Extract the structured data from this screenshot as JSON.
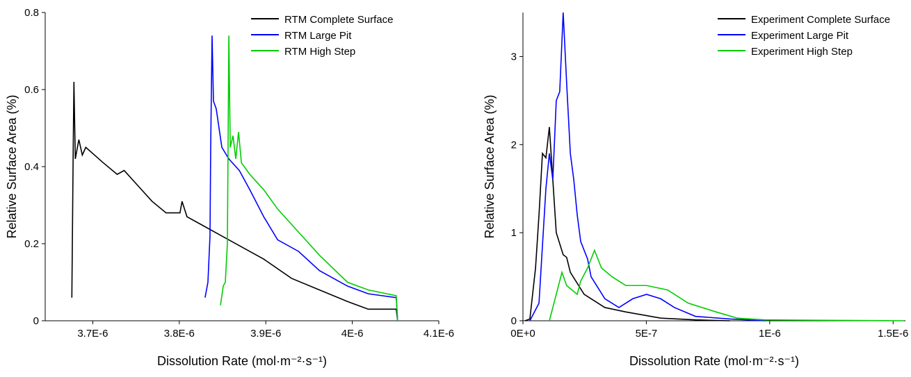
{
  "chart_data": [
    {
      "type": "line",
      "x_label": "Dissolution Rate (mol·m⁻²·s⁻¹)",
      "y_label": "Relative Surface Area (%)",
      "xlim": [
        3.645e-06,
        4.1e-06
      ],
      "ylim": [
        0,
        0.8
      ],
      "xticks": [
        {
          "value": 3.7e-06,
          "label": "3.7E-6"
        },
        {
          "value": 3.8e-06,
          "label": "3.8E-6"
        },
        {
          "value": 3.9e-06,
          "label": "3.9E-6"
        },
        {
          "value": 4e-06,
          "label": "4E-6"
        },
        {
          "value": 4.1e-06,
          "label": "4.1E-6"
        }
      ],
      "yticks": [
        0,
        0.2,
        0.4,
        0.6,
        0.8
      ],
      "legend": "upper right",
      "series": [
        {
          "name": "RTM Complete Surface",
          "color": "#000000",
          "x": [
            3.6758e-06,
            3.6774e-06,
            3.6782e-06,
            3.6798e-06,
            3.6839e-06,
            3.6879e-06,
            3.6919e-06,
            3.7121e-06,
            3.7282e-06,
            3.7363e-06,
            3.7524e-06,
            3.7685e-06,
            3.7847e-06,
            3.8008e-06,
            3.8032e-06,
            3.8089e-06,
            3.825e-06,
            3.8492e-06,
            3.8734e-06,
            3.8976e-06,
            3.9298e-06,
            3.9621e-06,
            3.9944e-06,
            4.0185e-06,
            4.0508e-06,
            4.0524e-06
          ],
          "values": [
            0.06,
            0.45,
            0.62,
            0.42,
            0.47,
            0.43,
            0.45,
            0.41,
            0.38,
            0.39,
            0.35,
            0.31,
            0.28,
            0.28,
            0.31,
            0.27,
            0.25,
            0.22,
            0.19,
            0.16,
            0.11,
            0.08,
            0.05,
            0.03,
            0.03,
            0
          ]
        },
        {
          "name": "RTM Large Pit",
          "color": "#0000ff",
          "x": [
            3.8298e-06,
            3.8331e-06,
            3.8355e-06,
            3.8363e-06,
            3.8379e-06,
            3.8395e-06,
            3.8427e-06,
            3.8492e-06,
            3.8573e-06,
            3.8694e-06,
            3.8815e-06,
            3.8976e-06,
            3.9137e-06,
            3.9379e-06,
            3.9621e-06,
            3.9944e-06,
            4.0185e-06,
            4.0508e-06,
            4.0524e-06
          ],
          "values": [
            0.06,
            0.1,
            0.22,
            0.45,
            0.74,
            0.57,
            0.55,
            0.45,
            0.42,
            0.39,
            0.34,
            0.27,
            0.21,
            0.18,
            0.13,
            0.09,
            0.07,
            0.06,
            0
          ]
        },
        {
          "name": "RTM High Step",
          "color": "#00cc00",
          "x": [
            3.8476e-06,
            3.8508e-06,
            3.8532e-06,
            3.8556e-06,
            3.8573e-06,
            3.8589e-06,
            3.8621e-06,
            3.8653e-06,
            3.8685e-06,
            3.8718e-06,
            3.8815e-06,
            3.8976e-06,
            3.9137e-06,
            3.9379e-06,
            3.9621e-06,
            3.9944e-06,
            4.0185e-06,
            4.0508e-06,
            4.0524e-06
          ],
          "values": [
            0.04,
            0.09,
            0.1,
            0.2,
            0.74,
            0.45,
            0.48,
            0.42,
            0.49,
            0.41,
            0.38,
            0.34,
            0.29,
            0.23,
            0.17,
            0.1,
            0.08,
            0.065,
            0
          ]
        }
      ]
    },
    {
      "type": "line",
      "x_label": "Dissolution Rate (mol·m⁻²·s⁻¹)",
      "y_label": "Relative Surface Area (%)",
      "xlim": [
        0,
        1.55e-06
      ],
      "ylim": [
        0,
        3.5
      ],
      "xticks": [
        {
          "value": 0,
          "label": "0E+0"
        },
        {
          "value": 5e-07,
          "label": "5E-7"
        },
        {
          "value": 1e-06,
          "label": "1E-6"
        },
        {
          "value": 1.5e-06,
          "label": "1.5E-6"
        }
      ],
      "yticks": [
        0,
        1,
        2,
        3
      ],
      "legend": "upper right",
      "series": [
        {
          "name": "Experiment Complete Surface",
          "color": "#000000",
          "x": [
            8e-09,
            2.8e-08,
            5.1e-08,
            6.5e-08,
            7.9e-08,
            9.3e-08,
            1.07e-07,
            1.21e-07,
            1.35e-07,
            1.63e-07,
            1.77e-07,
            1.92e-07,
            2.48e-07,
            3.32e-07,
            4.17e-07,
            5.58e-07,
            6.99e-07,
            8.39e-07
          ],
          "values": [
            0,
            0.02,
            0.6,
            1.2,
            1.9,
            1.85,
            2.2,
            1.6,
            1.0,
            0.75,
            0.72,
            0.55,
            0.3,
            0.15,
            0.1,
            0.03,
            0.01,
            0
          ]
        },
        {
          "name": "Experiment Large Pit",
          "color": "#0000ff",
          "x": [
            2.8e-08,
            6.5e-08,
            9.3e-08,
            1.07e-07,
            1.21e-07,
            1.35e-07,
            1.49e-07,
            1.63e-07,
            1.77e-07,
            1.92e-07,
            2.06e-07,
            2.2e-07,
            2.34e-07,
            2.62e-07,
            2.76e-07,
            3.32e-07,
            3.89e-07,
            4.45e-07,
            5.01e-07,
            5.58e-07,
            6.14e-07,
            6.99e-07,
            8.39e-07,
            9.8e-07
          ],
          "values": [
            0,
            0.2,
            1.5,
            1.9,
            1.6,
            2.5,
            2.6,
            3.5,
            2.7,
            1.9,
            1.6,
            1.2,
            0.9,
            0.7,
            0.5,
            0.25,
            0.15,
            0.25,
            0.3,
            0.25,
            0.15,
            0.05,
            0.02,
            0
          ]
        },
        {
          "name": "Experiment High Step",
          "color": "#00cc00",
          "x": [
            1.07e-07,
            1.35e-07,
            1.58e-07,
            1.77e-07,
            2.2e-07,
            2.34e-07,
            2.62e-07,
            2.9e-07,
            3.18e-07,
            3.61e-07,
            4.17e-07,
            5.01e-07,
            5.86e-07,
            6.7e-07,
            7.83e-07,
            8.68e-07,
            9.8e-07,
            1.544e-06
          ],
          "values": [
            0,
            0.3,
            0.55,
            0.4,
            0.3,
            0.45,
            0.6,
            0.8,
            0.6,
            0.5,
            0.4,
            0.4,
            0.35,
            0.2,
            0.1,
            0.03,
            0.01,
            0
          ]
        }
      ]
    }
  ]
}
